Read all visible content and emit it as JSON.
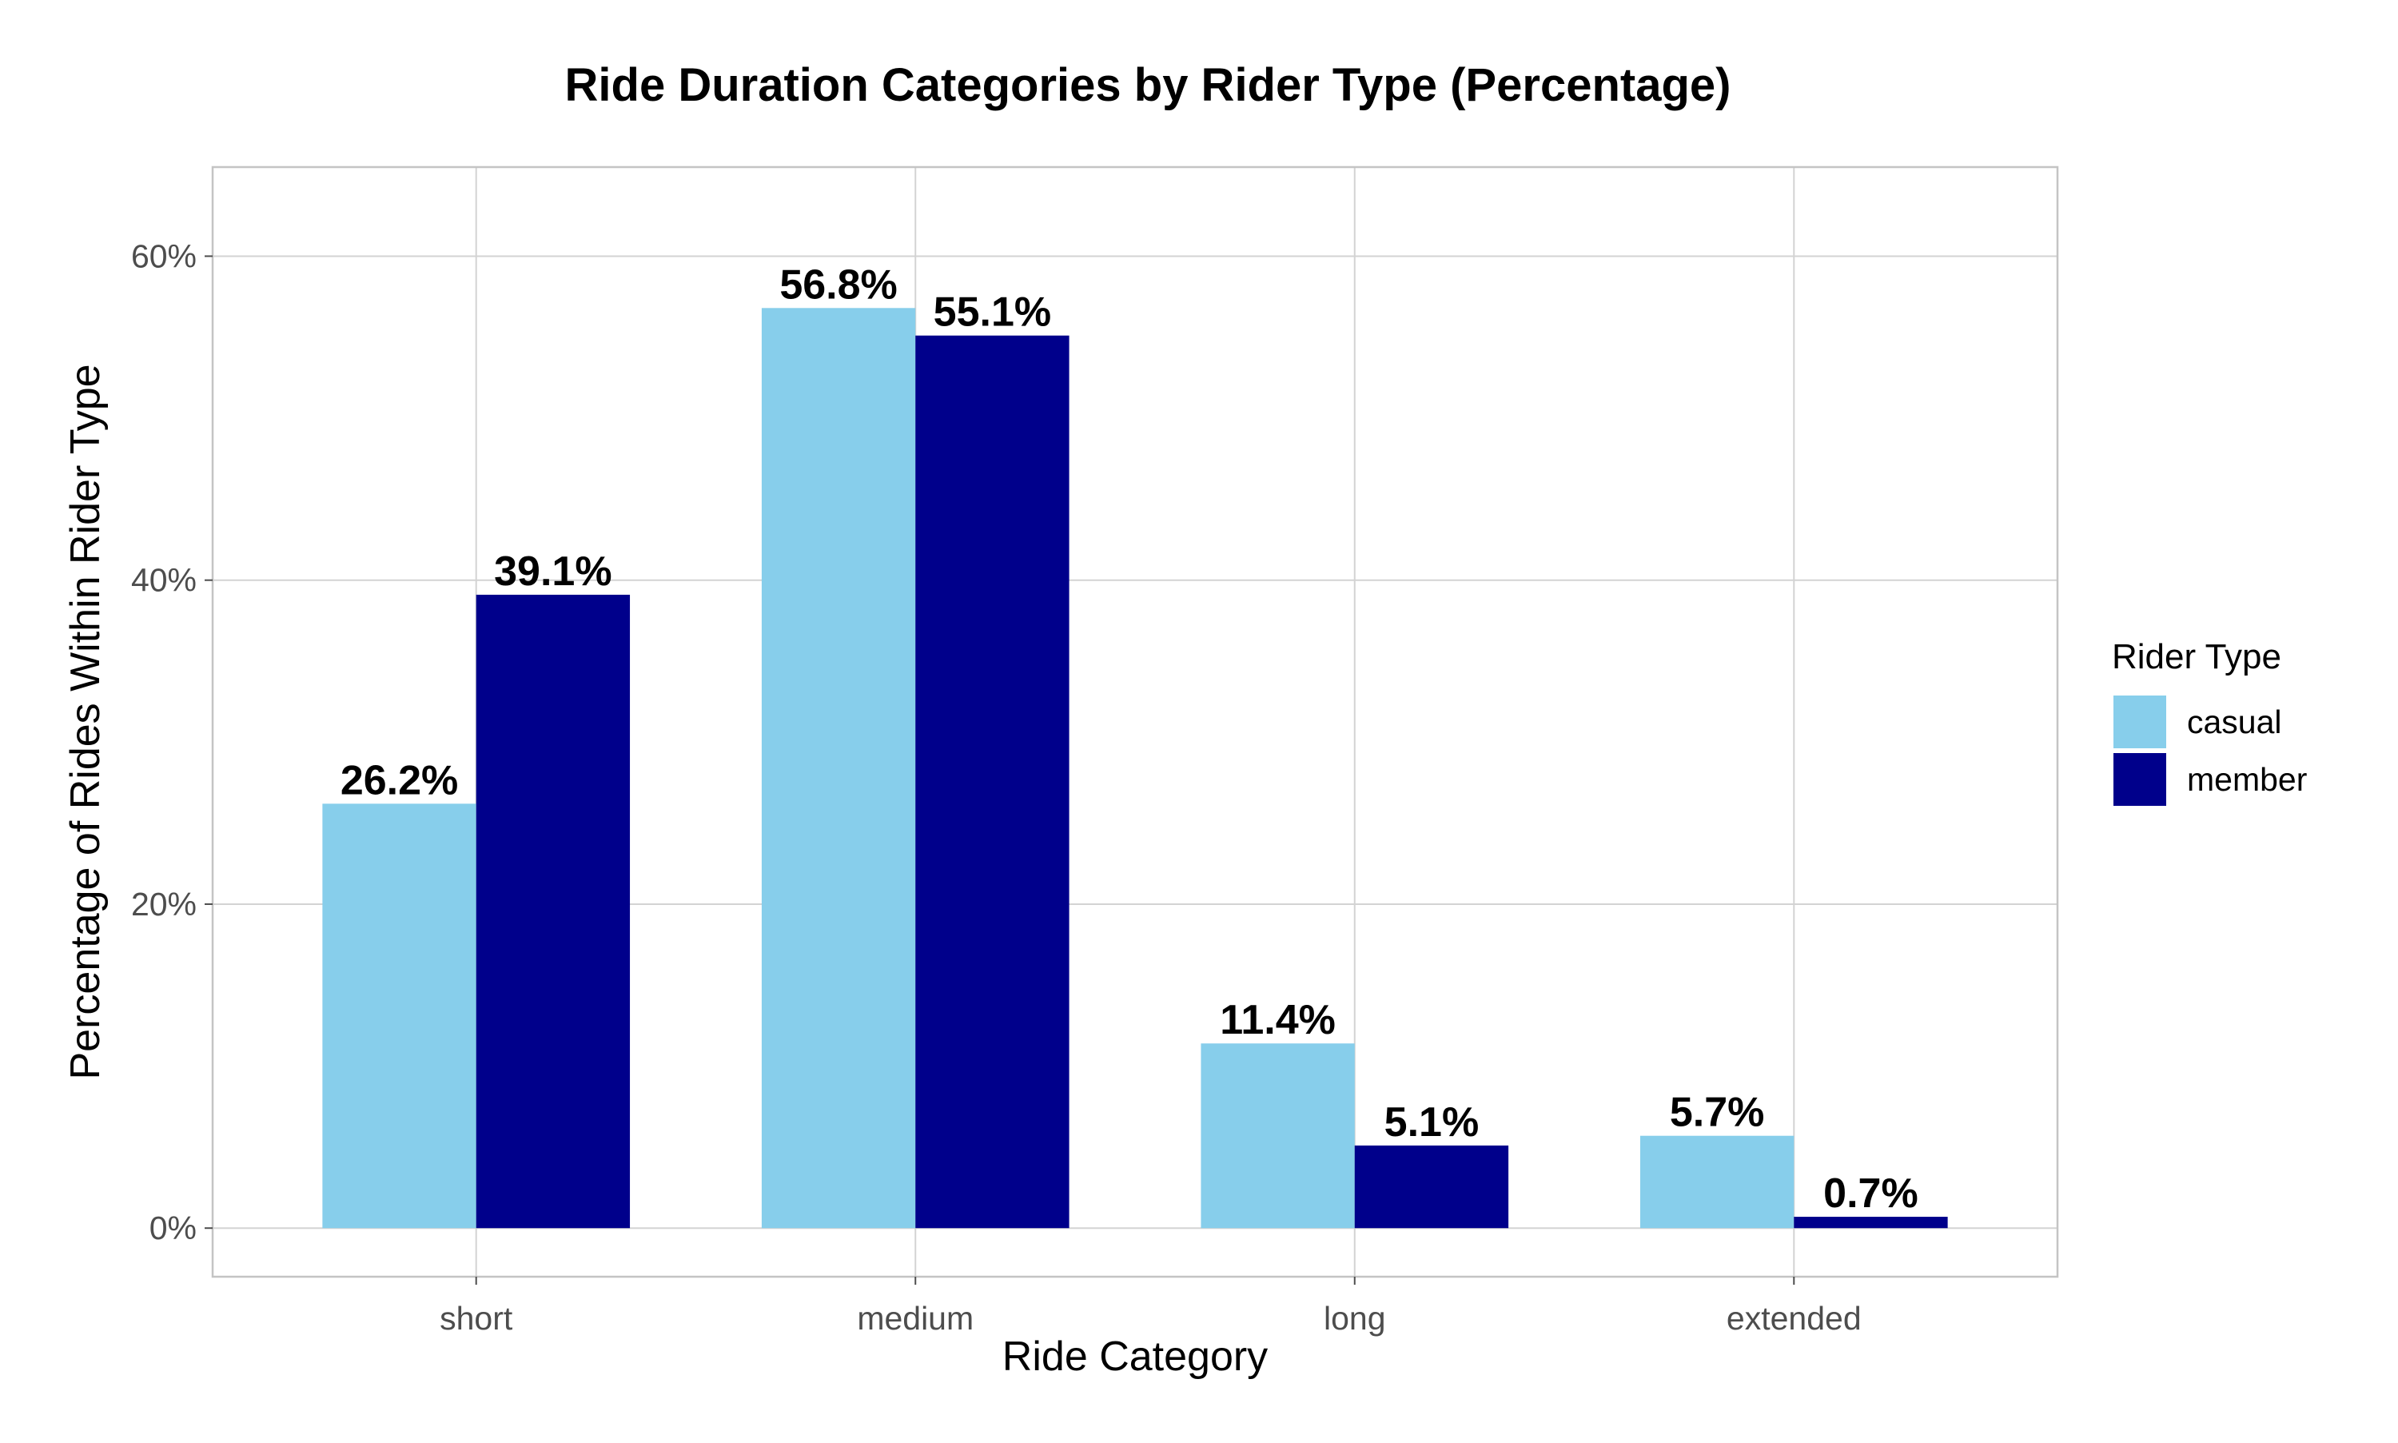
{
  "chart_data": {
    "type": "bar",
    "title": "Ride Duration Categories by Rider Type (Percentage)",
    "xlabel": "Ride Category",
    "ylabel": "Percentage of Rides Within Rider Type",
    "categories": [
      "short",
      "medium",
      "long",
      "extended"
    ],
    "series": [
      {
        "name": "casual",
        "color": "#87CEEB",
        "values": [
          26.2,
          56.8,
          11.4,
          5.7
        ],
        "labels": [
          "26.2%",
          "56.8%",
          "11.4%",
          "5.7%"
        ]
      },
      {
        "name": "member",
        "color": "#00008B",
        "values": [
          39.1,
          55.1,
          5.1,
          0.7
        ],
        "labels": [
          "39.1%",
          "55.1%",
          "5.1%",
          "0.7%"
        ]
      }
    ],
    "ylim": [
      -3,
      65.5
    ],
    "yticks": [
      0,
      20,
      40,
      60
    ],
    "ytick_labels": [
      "0%",
      "20%",
      "40%",
      "60%"
    ],
    "grid": true,
    "legend": {
      "title": "Rider Type",
      "position": "right"
    }
  }
}
